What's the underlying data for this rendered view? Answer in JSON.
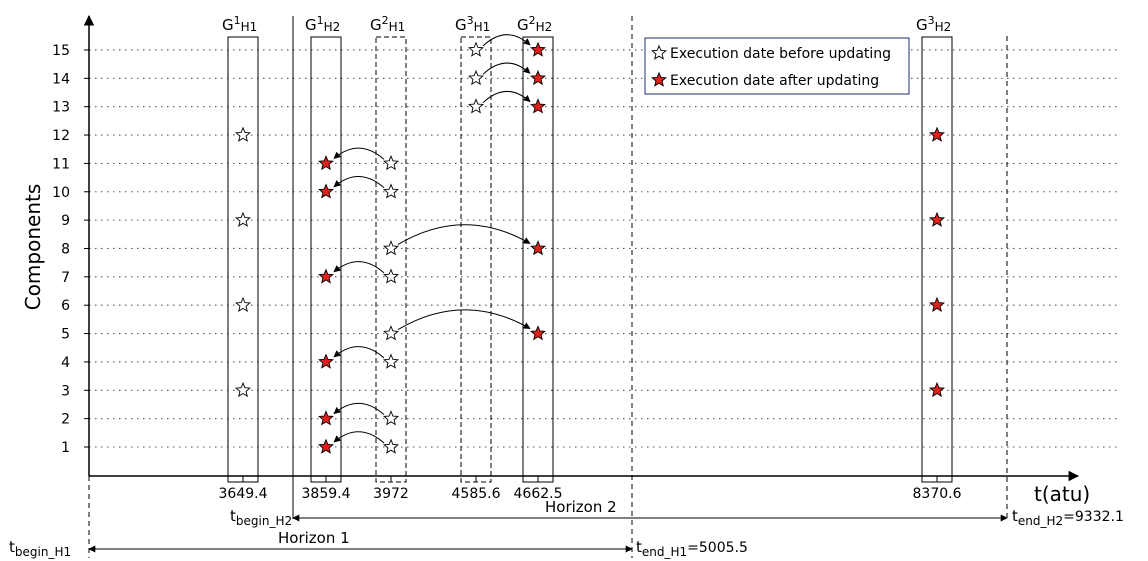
{
  "y_axis": {
    "title": "Components",
    "ticks": [
      "1",
      "2",
      "3",
      "4",
      "5",
      "6",
      "7",
      "8",
      "9",
      "10",
      "11",
      "12",
      "13",
      "14",
      "15"
    ]
  },
  "x_axis": {
    "title": "t(atu)",
    "tick_labels": [
      "3649.4",
      "3859.4",
      "3972",
      "4585.6",
      "4662.5",
      "8370.6"
    ]
  },
  "groups": [
    {
      "base": "G",
      "sup": "1",
      "sub": "H1",
      "x_value": 3649.4,
      "border": "solid"
    },
    {
      "base": "G",
      "sup": "1",
      "sub": "H2",
      "x_value": 3859.4,
      "border": "solid"
    },
    {
      "base": "G",
      "sup": "2",
      "sub": "H1",
      "x_value": 3972,
      "border": "dashed"
    },
    {
      "base": "G",
      "sup": "3",
      "sub": "H1",
      "x_value": 4585.6,
      "border": "dashed"
    },
    {
      "base": "G",
      "sup": "2",
      "sub": "H2",
      "x_value": 4662.5,
      "border": "solid"
    },
    {
      "base": "G",
      "sup": "3",
      "sub": "H2",
      "x_value": 8370.6,
      "border": "solid"
    }
  ],
  "markers": {
    "before_updating": [
      {
        "group": "G1_H1",
        "components": [
          3,
          6,
          9,
          12
        ]
      },
      {
        "group": "G2_H1",
        "components": [
          1,
          2,
          4,
          5,
          7,
          8,
          10,
          11
        ]
      },
      {
        "group": "G3_H1",
        "components": [
          13,
          14,
          15
        ]
      }
    ],
    "after_updating": [
      {
        "group": "G1_H2",
        "components": [
          1,
          2,
          4,
          7,
          10,
          11
        ]
      },
      {
        "group": "G2_H2",
        "components": [
          5,
          8,
          13,
          14,
          15
        ]
      },
      {
        "group": "G3_H2",
        "components": [
          3,
          6,
          9,
          12
        ]
      }
    ]
  },
  "moves": [
    {
      "component": 1,
      "from": "G2_H1",
      "to": "G1_H2"
    },
    {
      "component": 2,
      "from": "G2_H1",
      "to": "G1_H2"
    },
    {
      "component": 4,
      "from": "G2_H1",
      "to": "G1_H2"
    },
    {
      "component": 7,
      "from": "G2_H1",
      "to": "G1_H2"
    },
    {
      "component": 10,
      "from": "G2_H1",
      "to": "G1_H2"
    },
    {
      "component": 11,
      "from": "G2_H1",
      "to": "G1_H2"
    },
    {
      "component": 5,
      "from": "G2_H1",
      "to": "G2_H2"
    },
    {
      "component": 8,
      "from": "G2_H1",
      "to": "G2_H2"
    },
    {
      "component": 13,
      "from": "G3_H1",
      "to": "G2_H2"
    },
    {
      "component": 14,
      "from": "G3_H1",
      "to": "G2_H2"
    },
    {
      "component": 15,
      "from": "G3_H1",
      "to": "G2_H2"
    }
  ],
  "legend": {
    "items": [
      {
        "label": "Execution date before updating",
        "marker": "white-star"
      },
      {
        "label": "Execution date after updating",
        "marker": "red-star"
      }
    ]
  },
  "time_markers": {
    "begin_h1": {
      "base": "t",
      "sub": "begin_H1"
    },
    "begin_h2": {
      "base": "t",
      "sub": "begin_H2"
    },
    "end_h1": {
      "base": "t",
      "sub": "end_H1",
      "value": "=5005.5"
    },
    "end_h2": {
      "base": "t",
      "sub": "end_H2",
      "value": "=9332.1"
    }
  },
  "horizons": {
    "h1": "Horizon 1",
    "h2": "Horizon 2"
  },
  "colors": {
    "after_star": "#e0201b",
    "before_star": "#ffffff",
    "grid": "#555555",
    "legend_border": "#1f2d7a"
  }
}
